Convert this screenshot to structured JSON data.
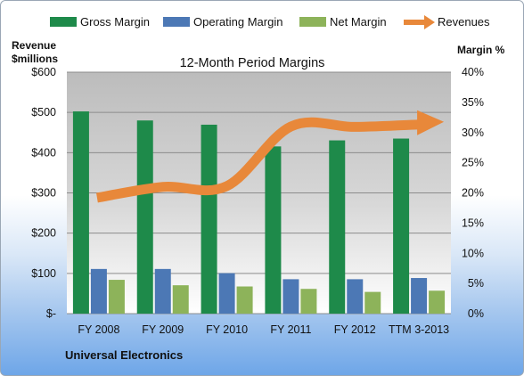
{
  "chart_data": {
    "type": "bar",
    "title": "12-Month Period Margins",
    "company": "Universal Electronics",
    "left_axis_title": [
      "Revenue",
      "$millions"
    ],
    "right_axis_title": "Margin %",
    "categories": [
      "FY 2008",
      "FY 2009",
      "FY 2010",
      "FY 2011",
      "FY 2012",
      "TTM 3-2013"
    ],
    "left_ticks": [
      "$-",
      "$100",
      "$200",
      "$300",
      "$400",
      "$500",
      "$600"
    ],
    "right_ticks": [
      "0%",
      "5%",
      "10%",
      "15%",
      "20%",
      "25%",
      "30%",
      "35%",
      "40%"
    ],
    "ylim_left": [
      0,
      600
    ],
    "ylim_right": [
      0,
      40
    ],
    "legend_position": "top",
    "series": [
      {
        "name": "Gross Margin",
        "kind": "bar",
        "axis": "right",
        "color": "#1e8a4a",
        "values": [
          33.5,
          32.0,
          31.3,
          27.7,
          28.7,
          29.0
        ]
      },
      {
        "name": "Operating Margin",
        "kind": "bar",
        "axis": "right",
        "color": "#4c78b5",
        "values": [
          7.4,
          7.4,
          6.7,
          5.7,
          5.7,
          5.9
        ]
      },
      {
        "name": "Net Margin",
        "kind": "bar",
        "axis": "right",
        "color": "#8db35a",
        "values": [
          5.6,
          4.7,
          4.5,
          4.1,
          3.6,
          3.8
        ]
      },
      {
        "name": "Revenues",
        "kind": "line",
        "axis": "left",
        "color": "#e8883a",
        "values": [
          288,
          315,
          317,
          465,
          464,
          470
        ]
      }
    ]
  }
}
